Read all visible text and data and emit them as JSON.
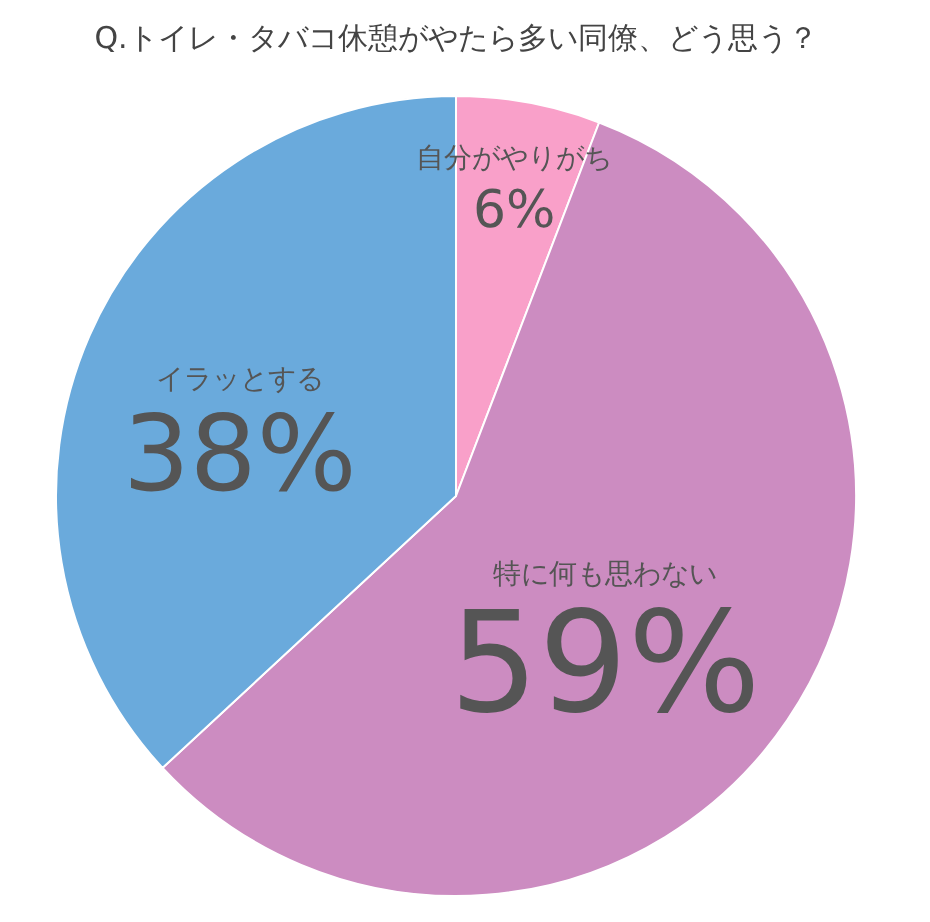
{
  "chart_data": {
    "type": "pie",
    "title": "Q.トイレ・タバコ休憩がやたら多い同僚、どう思う？",
    "categories": [
      "自分がやりがち",
      "特に何も思わない",
      "イラッとする"
    ],
    "values": [
      6,
      59,
      38
    ],
    "value_labels": [
      "6%",
      "59%",
      "38%"
    ],
    "colors": [
      "#f9a0c9",
      "#cc8cc1",
      "#6aaadc"
    ],
    "legend": false
  }
}
